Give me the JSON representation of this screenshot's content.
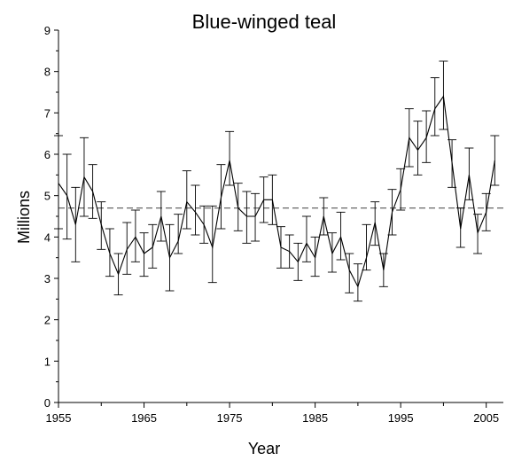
{
  "chart_data": {
    "type": "line",
    "title": "Blue-winged teal",
    "xlabel": "Year",
    "ylabel": "Millions",
    "xlim": [
      1955,
      2007
    ],
    "ylim": [
      0,
      9
    ],
    "x_ticks": [
      1955,
      1965,
      1975,
      1985,
      1995,
      2005
    ],
    "y_ticks": [
      0,
      1,
      2,
      3,
      4,
      5,
      6,
      7,
      8,
      9
    ],
    "grid": false,
    "reference_line": {
      "value": 4.7,
      "style": "dashed"
    },
    "series": [
      {
        "x": [
          1955,
          1956,
          1957,
          1958,
          1959,
          1960,
          1961,
          1962,
          1963,
          1964,
          1965,
          1966,
          1967,
          1968,
          1969,
          1970,
          1971,
          1972,
          1973,
          1974,
          1975,
          1976,
          1977,
          1978,
          1979,
          1980,
          1981,
          1982,
          1983,
          1984,
          1985,
          1986,
          1987,
          1988,
          1989,
          1990,
          1991,
          1992,
          1993,
          1994,
          1995,
          1996,
          1997,
          1998,
          1999,
          2000,
          2001,
          2002,
          2003,
          2004,
          2005,
          2006
        ],
        "values": [
          5.3,
          5.0,
          4.3,
          5.45,
          5.1,
          4.3,
          3.6,
          3.1,
          3.7,
          4.0,
          3.6,
          3.75,
          4.5,
          3.5,
          3.9,
          4.85,
          4.6,
          4.3,
          3.75,
          4.95,
          5.85,
          4.7,
          4.5,
          4.5,
          4.9,
          4.9,
          3.75,
          3.65,
          3.4,
          3.85,
          3.5,
          4.5,
          3.6,
          4.0,
          3.2,
          2.8,
          3.5,
          4.35,
          3.2,
          4.6,
          5.15,
          6.4,
          6.1,
          6.4,
          7.1,
          7.4,
          5.8,
          4.2,
          5.5,
          4.1,
          4.6,
          5.85
        ],
        "lower": [
          4.2,
          3.95,
          3.4,
          4.5,
          4.45,
          3.7,
          3.05,
          2.6,
          3.1,
          3.4,
          3.05,
          3.25,
          3.9,
          2.7,
          3.6,
          4.2,
          4.05,
          3.85,
          2.9,
          4.2,
          5.25,
          4.15,
          3.85,
          3.9,
          4.35,
          4.3,
          3.25,
          3.25,
          2.95,
          3.4,
          3.05,
          4.05,
          3.15,
          3.45,
          2.65,
          2.45,
          3.2,
          3.8,
          2.8,
          4.05,
          4.65,
          5.7,
          5.5,
          5.8,
          6.45,
          6.6,
          5.2,
          3.75,
          4.9,
          3.6,
          4.15,
          5.25
        ],
        "upper": [
          6.45,
          6.0,
          5.2,
          6.4,
          5.75,
          4.85,
          4.2,
          3.6,
          4.35,
          4.65,
          4.1,
          4.3,
          5.1,
          4.3,
          4.55,
          5.6,
          5.25,
          4.75,
          4.75,
          5.75,
          6.55,
          5.3,
          5.1,
          5.05,
          5.45,
          5.5,
          4.25,
          4.05,
          3.85,
          4.5,
          4.0,
          4.95,
          4.1,
          4.6,
          3.6,
          3.35,
          4.3,
          4.85,
          3.6,
          5.15,
          5.65,
          7.1,
          6.8,
          7.05,
          7.85,
          8.25,
          6.35,
          4.7,
          6.15,
          4.55,
          5.05,
          6.45
        ]
      }
    ]
  }
}
